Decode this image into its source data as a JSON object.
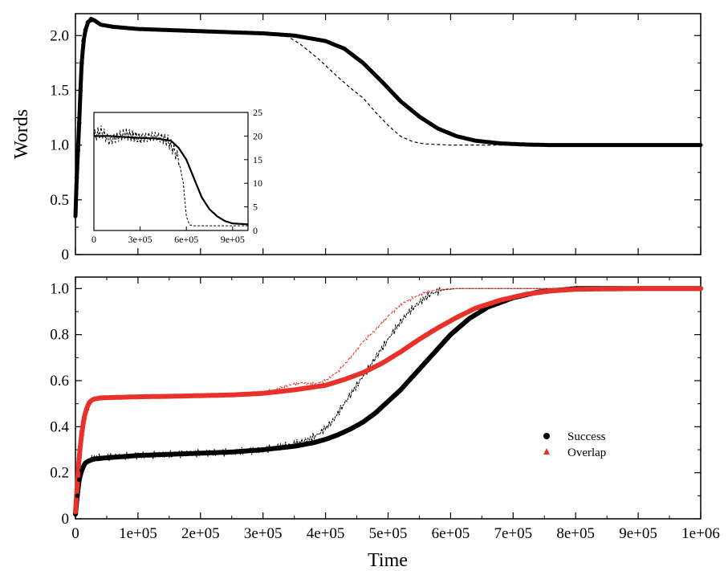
{
  "chart_data": [
    {
      "id": "top",
      "type": "line",
      "title": "",
      "xlabel": "",
      "ylabel": "Words",
      "xlim": [
        0,
        1000000
      ],
      "ylim": [
        0,
        2.2
      ],
      "yticks": [
        0,
        0.5,
        1.0,
        1.5,
        2.0
      ],
      "ytick_labels": [
        "0",
        "0.5",
        "1.0",
        "1.5",
        "2.0"
      ],
      "grid": false,
      "series": [
        {
          "style": "black filled circles (thick)",
          "color": "#000000",
          "x": [
            0,
            2000,
            4000,
            6000,
            8000,
            10000,
            13000,
            16000,
            20000,
            25000,
            30000,
            40000,
            60000,
            100000,
            150000,
            200000,
            250000,
            300000,
            350000,
            400000,
            430000,
            460000,
            490000,
            520000,
            550000,
            580000,
            610000,
            640000,
            680000,
            720000,
            760000,
            800000,
            900000,
            1000000
          ],
          "y": [
            0.35,
            0.7,
            0.95,
            1.2,
            1.5,
            1.75,
            1.95,
            2.05,
            2.12,
            2.15,
            2.14,
            2.1,
            2.08,
            2.06,
            2.05,
            2.04,
            2.03,
            2.02,
            2.0,
            1.95,
            1.88,
            1.75,
            1.58,
            1.4,
            1.26,
            1.15,
            1.08,
            1.04,
            1.015,
            1.005,
            1.0,
            1.0,
            1.0,
            1.0
          ]
        },
        {
          "style": "black dashed",
          "color": "#000000",
          "x": [
            0,
            5000,
            10000,
            15000,
            20000,
            30000,
            50000,
            100000,
            200000,
            300000,
            340000,
            360000,
            390000,
            420000,
            440000,
            460000,
            480000,
            500000,
            520000,
            540000,
            560000,
            600000,
            700000,
            800000,
            1000000
          ],
          "y": [
            0.3,
            1.0,
            1.75,
            2.05,
            2.12,
            2.13,
            2.09,
            2.06,
            2.03,
            2.01,
            1.99,
            1.92,
            1.78,
            1.62,
            1.52,
            1.43,
            1.3,
            1.18,
            1.08,
            1.03,
            1.01,
            1.0,
            1.0,
            1.0,
            1.0
          ]
        }
      ]
    },
    {
      "id": "inset",
      "type": "line",
      "title": "",
      "xlabel": "",
      "ylabel": "",
      "xlim": [
        0,
        1000000
      ],
      "ylim": [
        0,
        25
      ],
      "xticks": [
        0,
        300000,
        600000,
        900000
      ],
      "xtick_labels": [
        "0",
        "3e+05",
        "6e+05",
        "9e+05"
      ],
      "yticks": [
        0,
        5,
        10,
        15,
        20,
        25
      ],
      "ytick_labels": [
        "0",
        "5",
        "10",
        "15",
        "20",
        "25"
      ],
      "grid": false,
      "series": [
        {
          "style": "black solid",
          "color": "#000000",
          "x": [
            0,
            100000,
            200000,
            300000,
            400000,
            500000,
            550000,
            600000,
            650000,
            700000,
            750000,
            800000,
            850000,
            900000,
            1000000
          ],
          "y": [
            20,
            20,
            19.8,
            19.6,
            19.5,
            19,
            17.5,
            15,
            11,
            7,
            4.5,
            3,
            2,
            1.5,
            1.3
          ]
        },
        {
          "style": "black dashed",
          "color": "#000000",
          "x": [
            0,
            50000,
            100000,
            200000,
            300000,
            400000,
            480000,
            520000,
            550000,
            580000,
            600000,
            620000,
            650000,
            700000,
            1000000
          ],
          "y": [
            20,
            21,
            19,
            20.5,
            19.5,
            20,
            19,
            17,
            15,
            10,
            3,
            1.2,
            1,
            1,
            1
          ]
        }
      ]
    },
    {
      "id": "bottom",
      "type": "line",
      "title": "",
      "xlabel": "Time",
      "ylabel": "",
      "xlim": [
        0,
        1000000
      ],
      "ylim": [
        0,
        1.05
      ],
      "xticks": [
        0,
        100000,
        200000,
        300000,
        400000,
        500000,
        600000,
        700000,
        800000,
        900000,
        1000000
      ],
      "xtick_labels": [
        "0",
        "1e+05",
        "2e+05",
        "3e+05",
        "4e+05",
        "5e+05",
        "6e+05",
        "7e+05",
        "8e+05",
        "9e+05",
        "1e+06"
      ],
      "yticks": [
        0,
        0.2,
        0.4,
        0.6,
        0.8,
        1.0
      ],
      "ytick_labels": [
        "0",
        "0.2",
        "0.4",
        "0.6",
        "0.8",
        "1.0"
      ],
      "grid": false,
      "legend": "right",
      "series": [
        {
          "name": "Success",
          "style": "black filled circles (thick)",
          "color": "#000000",
          "x": [
            0,
            3000,
            6000,
            10000,
            15000,
            20000,
            30000,
            50000,
            100000,
            150000,
            200000,
            250000,
            300000,
            350000,
            380000,
            400000,
            420000,
            440000,
            460000,
            480000,
            500000,
            520000,
            540000,
            560000,
            580000,
            600000,
            630000,
            660000,
            700000,
            740000,
            780000,
            800000,
            850000,
            900000,
            1000000
          ],
          "y": [
            0.02,
            0.1,
            0.17,
            0.21,
            0.24,
            0.25,
            0.26,
            0.265,
            0.275,
            0.28,
            0.285,
            0.29,
            0.3,
            0.315,
            0.33,
            0.345,
            0.365,
            0.39,
            0.42,
            0.46,
            0.51,
            0.56,
            0.62,
            0.68,
            0.74,
            0.8,
            0.87,
            0.92,
            0.96,
            0.985,
            0.995,
            1.0,
            1.0,
            1.0,
            1.0
          ]
        },
        {
          "name": "",
          "style": "black dashed (noisy)",
          "color": "#000000",
          "x": [
            0,
            5000,
            10000,
            15000,
            20000,
            30000,
            60000,
            100000,
            150000,
            200000,
            250000,
            300000,
            340000,
            370000,
            390000,
            410000,
            430000,
            450000,
            470000,
            490000,
            510000,
            530000,
            550000,
            570000,
            590000,
            610000,
            650000,
            700000,
            1000000
          ],
          "y": [
            0.02,
            0.12,
            0.2,
            0.24,
            0.26,
            0.265,
            0.27,
            0.275,
            0.28,
            0.285,
            0.29,
            0.3,
            0.32,
            0.34,
            0.37,
            0.42,
            0.5,
            0.58,
            0.66,
            0.74,
            0.82,
            0.89,
            0.94,
            0.98,
            0.995,
            1.0,
            1.0,
            1.0,
            1.0
          ]
        },
        {
          "name": "Overlap",
          "style": "red filled triangles (thick)",
          "color": "#e8312a",
          "x": [
            0,
            3000,
            6000,
            10000,
            14000,
            18000,
            22000,
            26000,
            30000,
            40000,
            60000,
            100000,
            150000,
            200000,
            250000,
            300000,
            350000,
            400000,
            430000,
            460000,
            490000,
            520000,
            550000,
            580000,
            610000,
            640000,
            680000,
            720000,
            760000,
            800000,
            900000,
            1000000
          ],
          "y": [
            0.03,
            0.15,
            0.27,
            0.37,
            0.44,
            0.48,
            0.505,
            0.515,
            0.52,
            0.525,
            0.527,
            0.53,
            0.532,
            0.535,
            0.538,
            0.545,
            0.56,
            0.58,
            0.605,
            0.635,
            0.675,
            0.725,
            0.78,
            0.83,
            0.875,
            0.915,
            0.95,
            0.975,
            0.99,
            0.997,
            1.0,
            1.0
          ]
        },
        {
          "name": "",
          "style": "red dashed (noisy)",
          "color": "#e8312a",
          "x": [
            0,
            5000,
            10000,
            15000,
            20000,
            30000,
            60000,
            100000,
            200000,
            300000,
            340000,
            360000,
            380000,
            400000,
            420000,
            440000,
            460000,
            480000,
            500000,
            520000,
            540000,
            560000,
            580000,
            600000,
            700000,
            1000000
          ],
          "y": [
            0.03,
            0.2,
            0.38,
            0.47,
            0.51,
            0.525,
            0.527,
            0.53,
            0.535,
            0.545,
            0.58,
            0.59,
            0.585,
            0.6,
            0.64,
            0.7,
            0.77,
            0.82,
            0.88,
            0.93,
            0.96,
            0.985,
            0.995,
            1.0,
            1.0,
            1.0
          ]
        }
      ]
    }
  ]
}
